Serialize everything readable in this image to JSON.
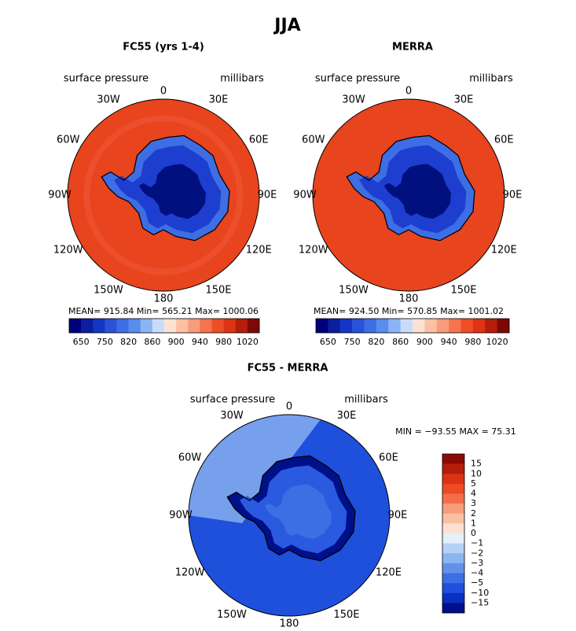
{
  "title": "JJA",
  "panels": [
    {
      "title": "FC55 (yrs 1-4)",
      "field": "surface pressure",
      "units": "millibars",
      "lon_labels": [
        "0",
        "30E",
        "60E",
        "90E",
        "120E",
        "150E",
        "180",
        "150W",
        "120W",
        "90W",
        "60W",
        "30W"
      ],
      "stats": "MEAN= 915.84   Min= 565.21   Max= 1000.06",
      "colorbar": {
        "orientation": "horizontal",
        "labels": [
          "650",
          "750",
          "820",
          "860",
          "900",
          "940",
          "980",
          "1020"
        ],
        "colors": [
          "#00007a",
          "#0a1e9e",
          "#1436c4",
          "#2a52d8",
          "#3e6ee4",
          "#5a8cee",
          "#8cb4f4",
          "#c8dcfa",
          "#fde2d4",
          "#fbc0a4",
          "#f89c7c",
          "#f4744e",
          "#ee4e26",
          "#dc3414",
          "#b41e0a",
          "#7e0804"
        ]
      },
      "map": {
        "ocean": "#e8441e",
        "rim": "#ee5430",
        "ice_edge": "#3e6ee4",
        "ice": "#1e3ed0",
        "plateau": "#00107e"
      }
    },
    {
      "title": "MERRA",
      "field": "surface pressure",
      "units": "millibars",
      "lon_labels": [
        "0",
        "30E",
        "60E",
        "90E",
        "120E",
        "150E",
        "180",
        "150W",
        "120W",
        "90W",
        "60W",
        "30W"
      ],
      "stats": "MEAN= 924.50   Min= 570.85   Max= 1001.02",
      "colorbar": {
        "orientation": "horizontal",
        "labels": [
          "650",
          "750",
          "820",
          "860",
          "900",
          "940",
          "980",
          "1020"
        ],
        "colors": [
          "#00007a",
          "#0a1e9e",
          "#1436c4",
          "#2a52d8",
          "#3e6ee4",
          "#5a8cee",
          "#8cb4f4",
          "#c8dcfa",
          "#fde2d4",
          "#fbc0a4",
          "#f89c7c",
          "#f4744e",
          "#ee4e26",
          "#dc3414",
          "#b41e0a",
          "#7e0804"
        ]
      },
      "map": {
        "ocean": "#e8441e",
        "rim": "#e8441e",
        "ice_edge": "#3e6ee4",
        "ice": "#1e3ed0",
        "plateau": "#00107e"
      }
    },
    {
      "title": "FC55 - MERRA",
      "field": "surface pressure",
      "units": "millibars",
      "lon_labels": [
        "0",
        "30E",
        "60E",
        "90E",
        "120E",
        "150E",
        "180",
        "150W",
        "120W",
        "90W",
        "60W",
        "30W"
      ],
      "stats": "MIN = −93.55 MAX =  75.31",
      "colorbar": {
        "orientation": "vertical",
        "labels": [
          "15",
          "10",
          "5",
          "4",
          "3",
          "2",
          "1",
          "0",
          "−1",
          "−2",
          "−3",
          "−4",
          "−5",
          "−10",
          "−15"
        ],
        "colors": [
          "#8c0a05",
          "#b41e0a",
          "#dc3214",
          "#ee4a26",
          "#f46d4a",
          "#f89c7c",
          "#fbbfa4",
          "#fde0d2",
          "#e6f0fa",
          "#b4d0f5",
          "#8cb4f0",
          "#6490ea",
          "#3c6ee4",
          "#1e50dc",
          "#0a30c0",
          "#00108a"
        ]
      },
      "map": {
        "ocean": "#1e50dc",
        "rim": "#8cb4f0",
        "ice_edge": "#00108a",
        "ice": "#2a5ae0",
        "plateau": "#3c6ee4"
      }
    }
  ]
}
